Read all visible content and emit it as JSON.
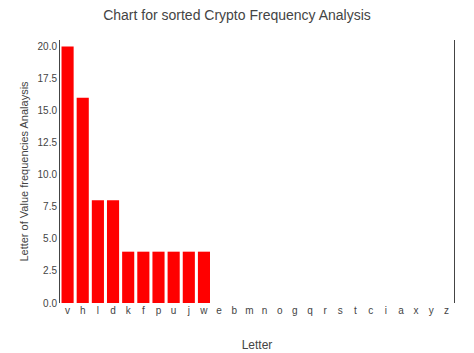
{
  "chart_data": {
    "type": "bar",
    "title": "Chart for sorted Crypto Frequency Analysis",
    "xlabel": "Letter",
    "ylabel": "Letter of Value frequencies Analaysis",
    "categories": [
      "v",
      "h",
      "l",
      "d",
      "k",
      "f",
      "p",
      "u",
      "j",
      "w",
      "e",
      "b",
      "m",
      "n",
      "o",
      "g",
      "q",
      "r",
      "s",
      "t",
      "c",
      "i",
      "a",
      "x",
      "y",
      "z"
    ],
    "values": [
      20,
      16,
      8,
      8,
      4,
      4,
      4,
      4,
      4,
      4,
      0,
      0,
      0,
      0,
      0,
      0,
      0,
      0,
      0,
      0,
      0,
      0,
      0,
      0,
      0,
      0
    ],
    "color": "#ff0000",
    "ylim": [
      0,
      20.5
    ],
    "yticks": [
      {
        "value": 0,
        "label": "0.0"
      },
      2.5,
      {
        "value": 5,
        "label": "5.0"
      },
      7.5,
      {
        "value": 10,
        "label": "10.0"
      },
      12.5,
      {
        "value": 15,
        "label": "15.0"
      },
      17.5,
      {
        "value": 20,
        "label": "20.0"
      }
    ],
    "grid": false
  }
}
